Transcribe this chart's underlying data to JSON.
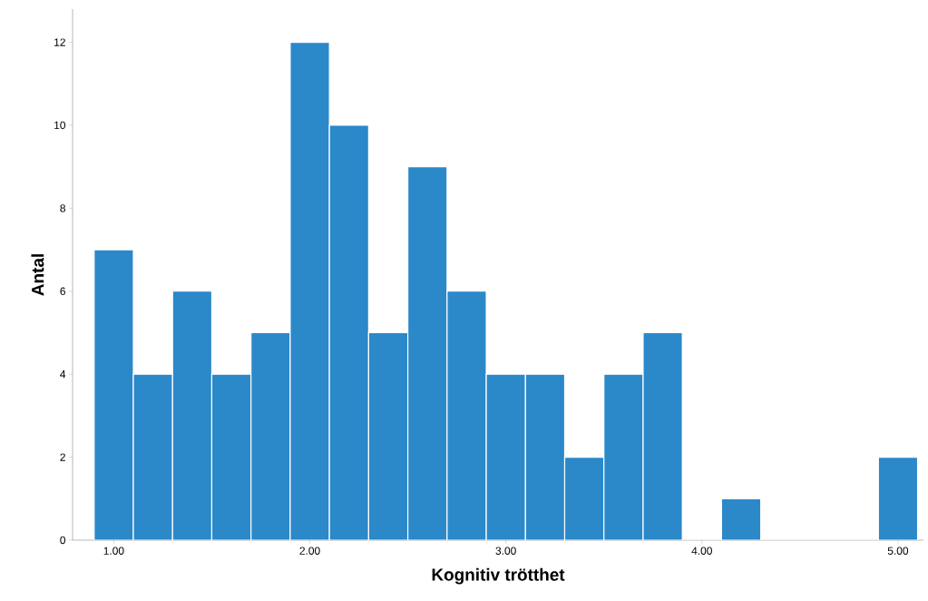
{
  "chart_data": {
    "type": "histogram",
    "xlabel": "Kognitiv trötthet",
    "ylabel": "Antal",
    "color": "#2b88c9",
    "bins": [
      0.9,
      1.1,
      1.3,
      1.5,
      1.7,
      1.9,
      2.1,
      2.3,
      2.5,
      2.7,
      2.9,
      3.1,
      3.3,
      3.5,
      3.7,
      3.9,
      4.1,
      4.3,
      4.5,
      4.7,
      4.9,
      5.1
    ],
    "values": [
      7,
      4,
      6,
      4,
      5,
      12,
      10,
      5,
      9,
      6,
      4,
      4,
      2,
      4,
      5,
      0,
      1,
      0,
      0,
      0,
      2
    ],
    "xlim": [
      0.79,
      5.13
    ],
    "ylim": [
      0,
      12.8
    ],
    "xticks": [
      {
        "value": 1,
        "label": "1.00"
      },
      {
        "value": 2,
        "label": "2.00"
      },
      {
        "value": 3,
        "label": "3.00"
      },
      {
        "value": 4,
        "label": "4.00"
      },
      {
        "value": 5,
        "label": "5.00"
      }
    ],
    "yticks": [
      0,
      2,
      4,
      6,
      8,
      10,
      12
    ],
    "grid": false
  }
}
